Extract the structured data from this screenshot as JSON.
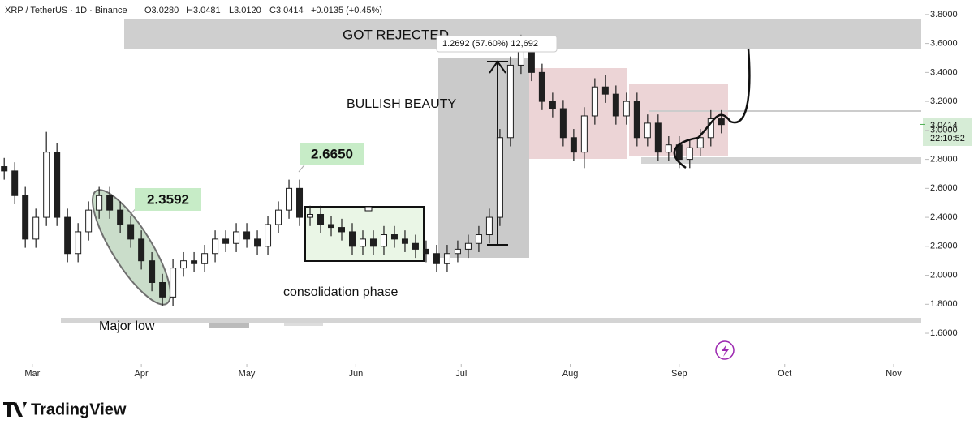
{
  "chart_data": {
    "type": "candlestick",
    "header": {
      "symbol": "XRP / TetherUS · 1D · Binance",
      "open": "O3.0280",
      "high": "H3.0481",
      "low": "L3.0120",
      "close": "C3.0414",
      "change": "+0.0135 (+0.45%)"
    },
    "x": [
      -8,
      -5,
      -2,
      1,
      4,
      7,
      10,
      13,
      16,
      19,
      22,
      25,
      28,
      31,
      34,
      37,
      40,
      43,
      46,
      49,
      52,
      55,
      58,
      61,
      64,
      67,
      70,
      73,
      76,
      79,
      82,
      85,
      88,
      91,
      94,
      97,
      100,
      103,
      106,
      109,
      112,
      115,
      118,
      121,
      124,
      127,
      130,
      133,
      136,
      139,
      142,
      145,
      148,
      151,
      154,
      157,
      160,
      163,
      166,
      169,
      172,
      175,
      178,
      181,
      184,
      187,
      190,
      193,
      196
    ],
    "open": [
      2.75,
      2.72,
      2.55,
      2.25,
      2.4,
      2.85,
      2.4,
      2.15,
      2.3,
      2.45,
      2.55,
      2.45,
      2.35,
      2.25,
      2.1,
      1.95,
      1.85,
      2.05,
      2.1,
      2.08,
      2.15,
      2.25,
      2.22,
      2.3,
      2.25,
      2.2,
      2.35,
      2.45,
      2.6,
      2.4,
      2.42,
      2.35,
      2.33,
      2.3,
      2.2,
      2.25,
      2.2,
      2.28,
      2.25,
      2.22,
      2.18,
      2.15,
      2.08,
      2.15,
      2.18,
      2.22,
      2.28,
      2.4,
      2.95,
      3.45,
      3.55,
      3.4,
      3.2,
      3.15,
      2.95,
      2.85,
      3.1,
      3.3,
      3.25,
      3.1,
      3.2,
      2.95,
      3.05,
      2.85,
      2.9,
      2.8,
      2.88,
      2.95,
      3.08
    ],
    "high": [
      2.81,
      2.78,
      2.61,
      2.46,
      2.99,
      2.91,
      2.46,
      2.36,
      2.51,
      2.61,
      2.61,
      2.51,
      2.41,
      2.31,
      2.16,
      2.01,
      2.11,
      2.16,
      2.16,
      2.21,
      2.31,
      2.31,
      2.36,
      2.36,
      2.31,
      2.41,
      2.51,
      2.66,
      2.66,
      2.48,
      2.48,
      2.41,
      2.39,
      2.36,
      2.31,
      2.31,
      2.34,
      2.34,
      2.31,
      2.28,
      2.24,
      2.21,
      2.21,
      2.24,
      2.28,
      2.34,
      2.46,
      3.01,
      3.51,
      3.66,
      3.61,
      3.46,
      3.26,
      3.21,
      3.01,
      3.16,
      3.36,
      3.38,
      3.31,
      3.26,
      3.26,
      3.11,
      3.11,
      2.96,
      2.96,
      2.94,
      3.01,
      3.14,
      3.14
    ],
    "low": [
      2.66,
      2.49,
      2.19,
      2.19,
      2.34,
      2.34,
      2.09,
      2.09,
      2.24,
      2.39,
      2.39,
      2.29,
      2.19,
      2.04,
      1.89,
      1.79,
      1.79,
      1.99,
      2.02,
      2.02,
      2.09,
      2.16,
      2.16,
      2.19,
      2.14,
      2.14,
      2.29,
      2.39,
      2.34,
      2.34,
      2.29,
      2.27,
      2.24,
      2.14,
      2.14,
      2.14,
      2.14,
      2.19,
      2.16,
      2.12,
      2.09,
      2.02,
      2.02,
      2.09,
      2.12,
      2.16,
      2.22,
      2.34,
      2.89,
      3.39,
      3.34,
      3.14,
      3.09,
      2.89,
      2.79,
      2.74,
      3.04,
      3.19,
      3.04,
      3.04,
      2.89,
      2.89,
      2.79,
      2.79,
      2.74,
      2.74,
      2.82,
      2.89,
      2.98
    ],
    "close": [
      2.72,
      2.55,
      2.25,
      2.4,
      2.85,
      2.4,
      2.15,
      2.3,
      2.45,
      2.55,
      2.45,
      2.35,
      2.25,
      2.1,
      1.95,
      1.85,
      2.05,
      2.1,
      2.08,
      2.15,
      2.25,
      2.22,
      2.3,
      2.25,
      2.2,
      2.35,
      2.45,
      2.6,
      2.4,
      2.42,
      2.35,
      2.33,
      2.3,
      2.2,
      2.25,
      2.2,
      2.28,
      2.25,
      2.22,
      2.18,
      2.15,
      2.08,
      2.15,
      2.18,
      2.22,
      2.28,
      2.4,
      2.95,
      3.45,
      3.55,
      3.4,
      3.2,
      3.15,
      2.95,
      2.85,
      3.1,
      3.3,
      3.25,
      3.1,
      3.2,
      2.95,
      3.05,
      2.85,
      2.9,
      2.8,
      2.88,
      2.95,
      3.08,
      3.04
    ],
    "up_color": "#ffffff",
    "down_color": "#1f1f1f",
    "wick_color": "#1f1f1f",
    "xlim": [
      -9.2,
      254
    ],
    "xticks": [
      {
        "value": 0,
        "label": "Mar"
      },
      {
        "value": 31,
        "label": "Apr"
      },
      {
        "value": 61,
        "label": "May"
      },
      {
        "value": 92,
        "label": "Jun"
      },
      {
        "value": 122,
        "label": "Jul"
      },
      {
        "value": 153,
        "label": "Aug"
      },
      {
        "value": 184,
        "label": "Sep"
      },
      {
        "value": 214,
        "label": "Oct"
      },
      {
        "value": 245,
        "label": "Nov"
      }
    ],
    "ylim": [
      1.41,
      3.9
    ],
    "yticks": [
      {
        "value": 1.6,
        "label": "1.6000"
      },
      {
        "value": 1.8,
        "label": "1.8000"
      },
      {
        "value": 2.0,
        "label": "2.0000"
      },
      {
        "value": 2.2,
        "label": "2.2000"
      },
      {
        "value": 2.4,
        "label": "2.4000"
      },
      {
        "value": 2.6,
        "label": "2.6000"
      },
      {
        "value": 2.8,
        "label": "2.8000"
      },
      {
        "value": 3.0,
        "label": "3.0000"
      },
      {
        "value": 3.2,
        "label": "3.2000"
      },
      {
        "value": 3.4,
        "label": "3.4000"
      },
      {
        "value": 3.6,
        "label": "3.6000"
      },
      {
        "value": 3.8,
        "label": "3.8000"
      }
    ],
    "last_price": 3.0414,
    "countdown": "22:10:52",
    "annotations": {
      "rejected": "GOT REJECTED",
      "measure": "1.2692 (57.60%) 12,692",
      "bullish": "BULLISH BEAUTY",
      "label_a": "2.3592",
      "label_b": "2.6650",
      "consolidation": "consolidation phase",
      "major_low": "Major low"
    },
    "brand": "TradingView"
  }
}
